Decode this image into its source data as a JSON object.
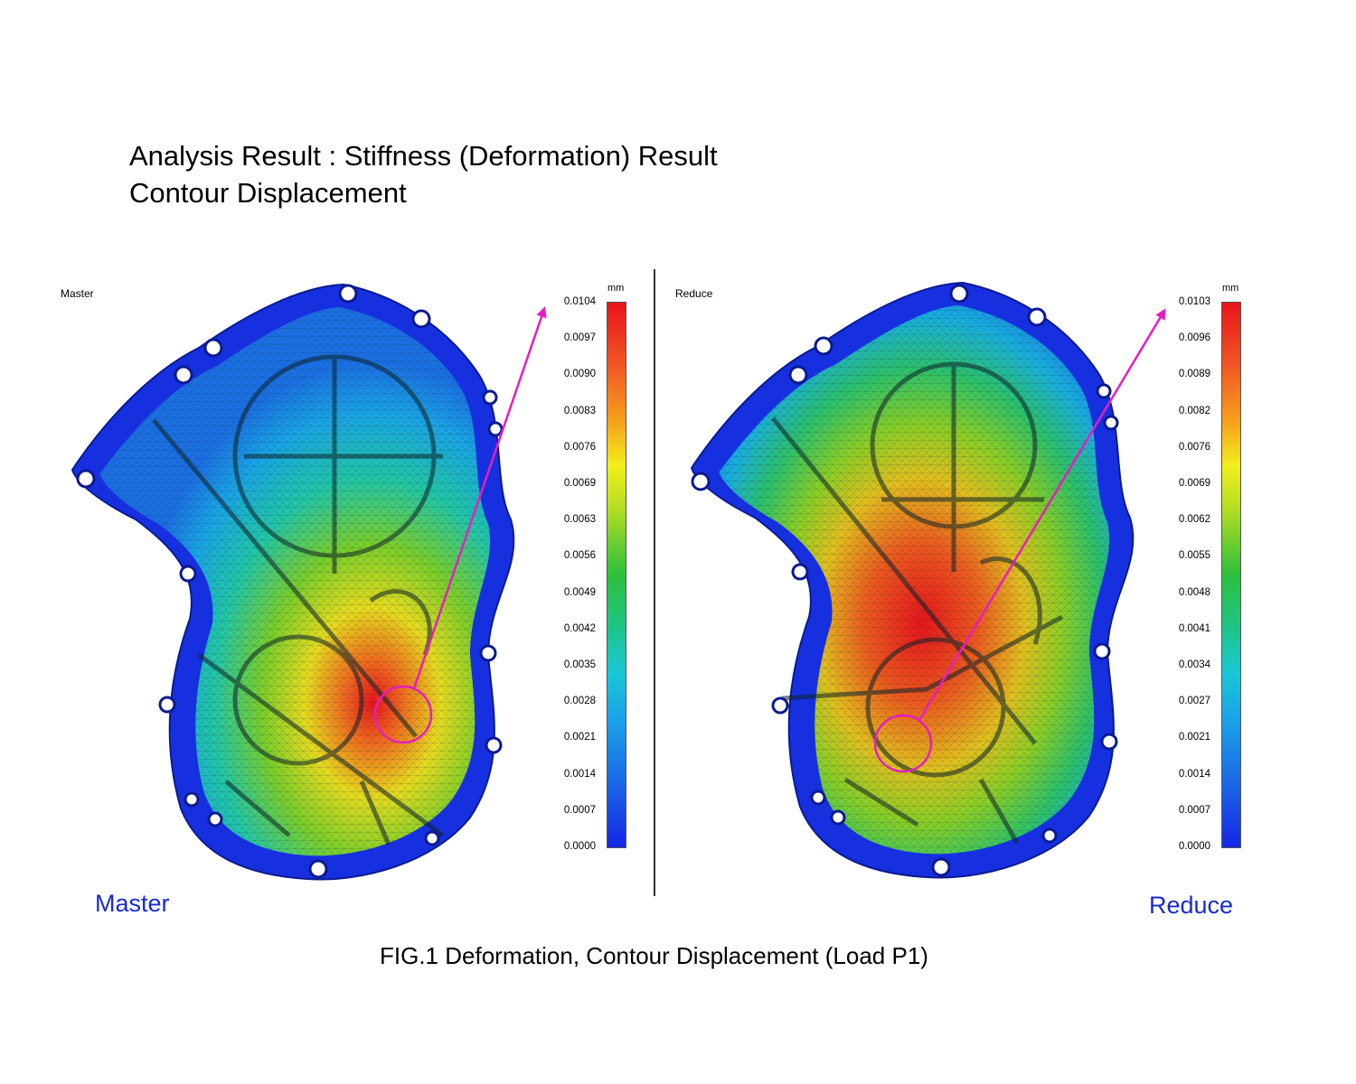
{
  "heading": {
    "line1": "Analysis Result : Stiffness (Deformation) Result",
    "line2": "Contour Displacement"
  },
  "left_panel": {
    "label": "Master",
    "unit": "mm",
    "legend_ticks": [
      "0.0104",
      "0.0097",
      "0.0090",
      "0.0083",
      "0.0076",
      "0.0069",
      "0.0063",
      "0.0056",
      "0.0049",
      "0.0042",
      "0.0035",
      "0.0028",
      "0.0021",
      "0.0014",
      "0.0007",
      "0.0000"
    ],
    "caption": "Master"
  },
  "right_panel": {
    "label": "Reduce",
    "unit": "mm",
    "legend_ticks": [
      "0.0103",
      "0.0096",
      "0.0089",
      "0.0082",
      "0.0076",
      "0.0069",
      "0.0062",
      "0.0055",
      "0.0048",
      "0.0041",
      "0.0034",
      "0.0027",
      "0.0021",
      "0.0014",
      "0.0007",
      "0.0000"
    ],
    "caption": "Reduce"
  },
  "figure_caption": "FIG.1 Deformation, Contour Displacement (Load P1)",
  "colors": {
    "highlight": "#e61ebf",
    "caption_blue": "#1a2bd0",
    "max_red": "#e8141b",
    "min_blue": "#1526e6"
  }
}
